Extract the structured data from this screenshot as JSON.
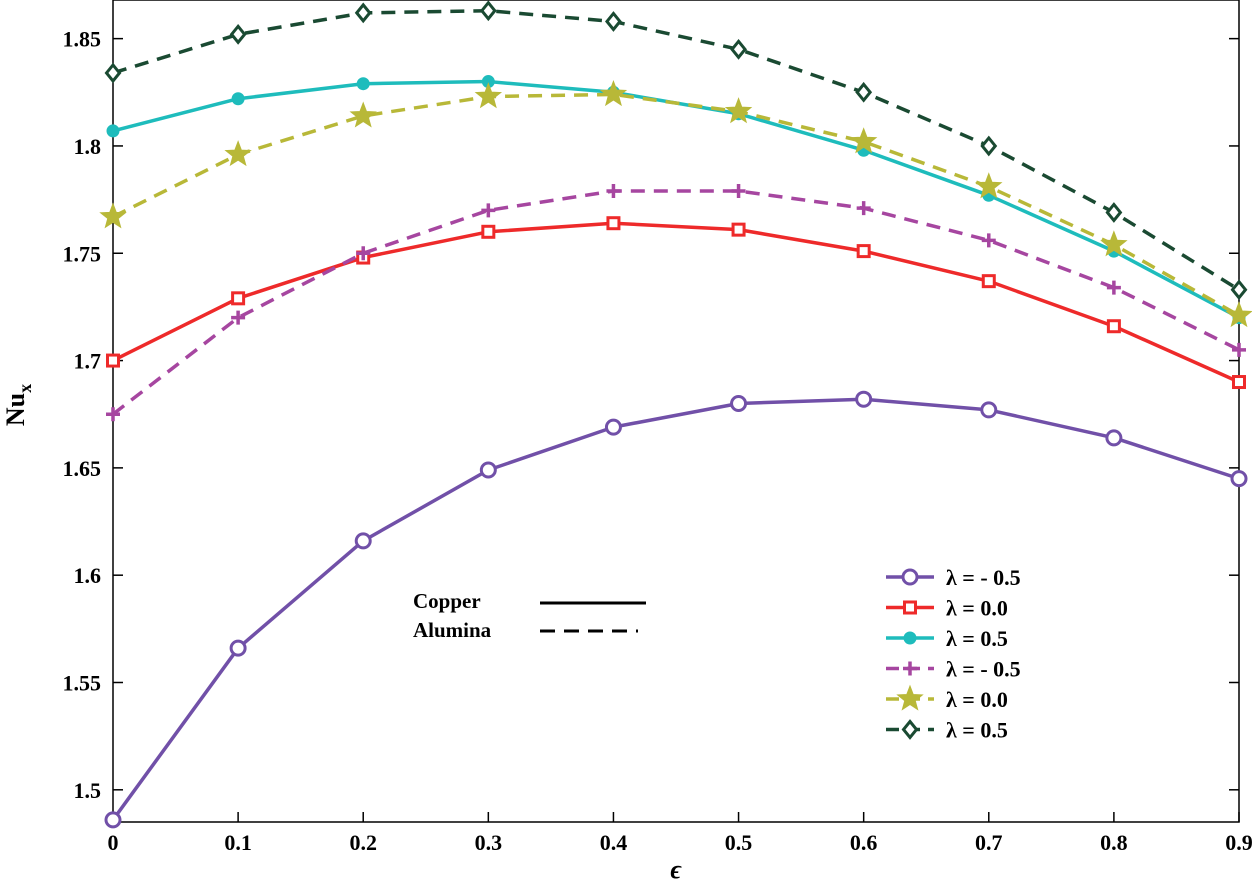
{
  "chart_data": {
    "type": "line",
    "title": "",
    "xlabel": "ϵ",
    "ylabel": "Nu",
    "ylabel_sub": "x",
    "xlim": [
      0,
      0.9
    ],
    "ylim": [
      1.485,
      1.868
    ],
    "x": [
      0,
      0.1,
      0.2,
      0.3,
      0.4,
      0.5,
      0.6,
      0.7,
      0.8,
      0.9
    ],
    "x_ticks": [
      "0",
      "0.1",
      "0.2",
      "0.3",
      "0.4",
      "0.5",
      "0.6",
      "0.7",
      "0.8",
      "0.9"
    ],
    "y_ticks": [
      "1.5",
      "1.55",
      "1.6",
      "1.65",
      "1.7",
      "1.75",
      "1.8",
      "1.85"
    ],
    "series": [
      {
        "name": "λ = - 0.5",
        "group": "Copper",
        "style": "solid",
        "marker": "circle",
        "color": "#7150a8",
        "values": [
          1.486,
          1.566,
          1.616,
          1.649,
          1.669,
          1.68,
          1.682,
          1.677,
          1.664,
          1.645
        ]
      },
      {
        "name": "λ =  0.0",
        "group": "Copper",
        "style": "solid",
        "marker": "square",
        "color": "#ee2a2a",
        "values": [
          1.7,
          1.729,
          1.748,
          1.76,
          1.764,
          1.761,
          1.751,
          1.737,
          1.716,
          1.69
        ]
      },
      {
        "name": "λ =  0.5",
        "group": "Copper",
        "style": "solid",
        "marker": "dot",
        "color": "#1ebcbc",
        "values": [
          1.807,
          1.822,
          1.829,
          1.83,
          1.825,
          1.815,
          1.798,
          1.777,
          1.751,
          1.72
        ]
      },
      {
        "name": "λ = - 0.5",
        "group": "Alumina",
        "style": "dashed",
        "marker": "plus",
        "color": "#a646a0",
        "values": [
          1.675,
          1.72,
          1.75,
          1.77,
          1.779,
          1.779,
          1.771,
          1.756,
          1.734,
          1.705
        ]
      },
      {
        "name": "λ =  0.0",
        "group": "Alumina",
        "style": "dashed",
        "marker": "star",
        "color": "#b8b838",
        "values": [
          1.767,
          1.796,
          1.814,
          1.823,
          1.824,
          1.816,
          1.802,
          1.781,
          1.754,
          1.721
        ]
      },
      {
        "name": "λ =  0.5",
        "group": "Alumina",
        "style": "dashed",
        "marker": "diamond",
        "color": "#1a4a32",
        "values": [
          1.834,
          1.852,
          1.862,
          1.863,
          1.858,
          1.845,
          1.825,
          1.8,
          1.769,
          1.733
        ]
      }
    ],
    "line_style_note": [
      {
        "label": "Copper",
        "style": "solid"
      },
      {
        "label": "Alumina",
        "style": "dashed"
      }
    ],
    "legend_position": "bottom-right",
    "grid": false
  }
}
